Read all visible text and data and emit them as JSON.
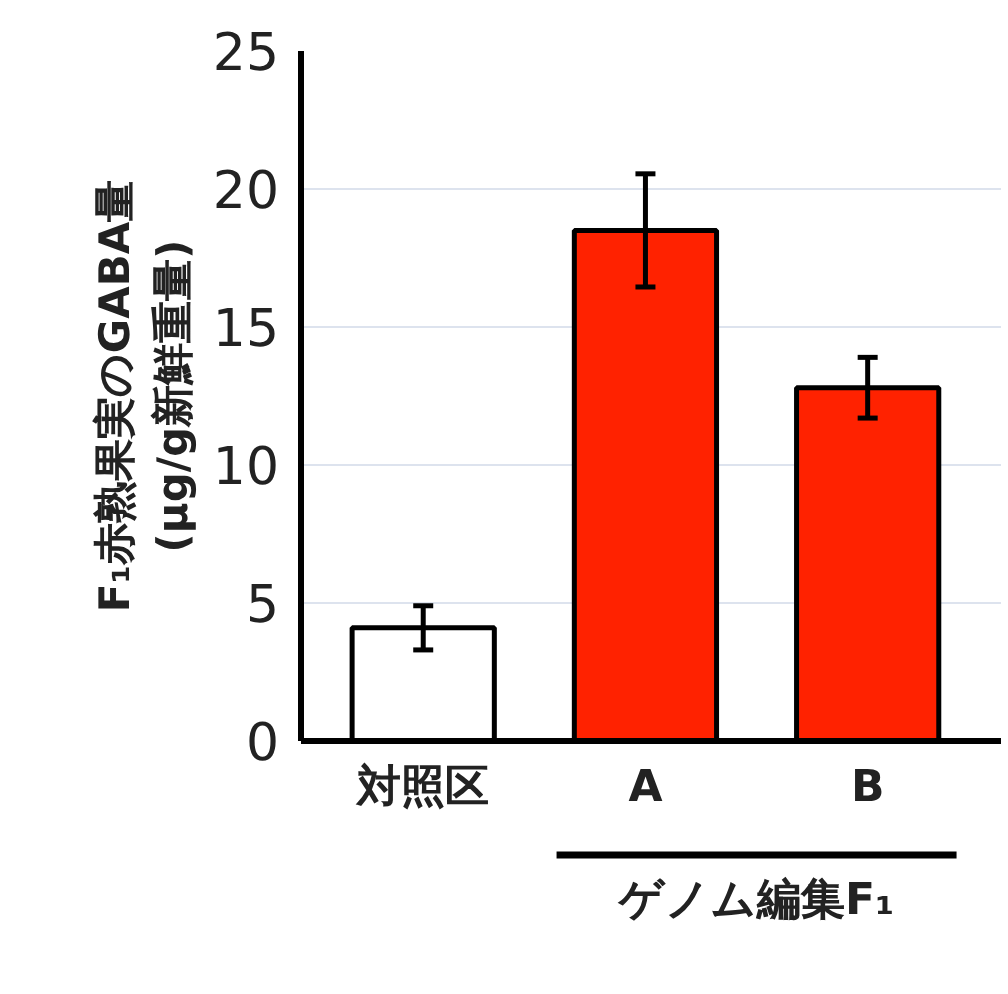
{
  "chart_data": {
    "type": "bar",
    "ylabel": "F₁赤熟果実のGABA量\n(μg/g新鮮重量)",
    "categories": [
      "対照区",
      "A",
      "B"
    ],
    "values": [
      4.1,
      18.5,
      12.8
    ],
    "colors": [
      "#ffffff",
      "#ff2200",
      "#ff2200"
    ],
    "errors": [
      0.8,
      2.05,
      1.1
    ],
    "ylim": [
      0,
      25
    ],
    "yticks": [
      0,
      5,
      10,
      15,
      20,
      25
    ],
    "grid": "y",
    "annotations": [
      "ゲノム編集F₁"
    ]
  }
}
